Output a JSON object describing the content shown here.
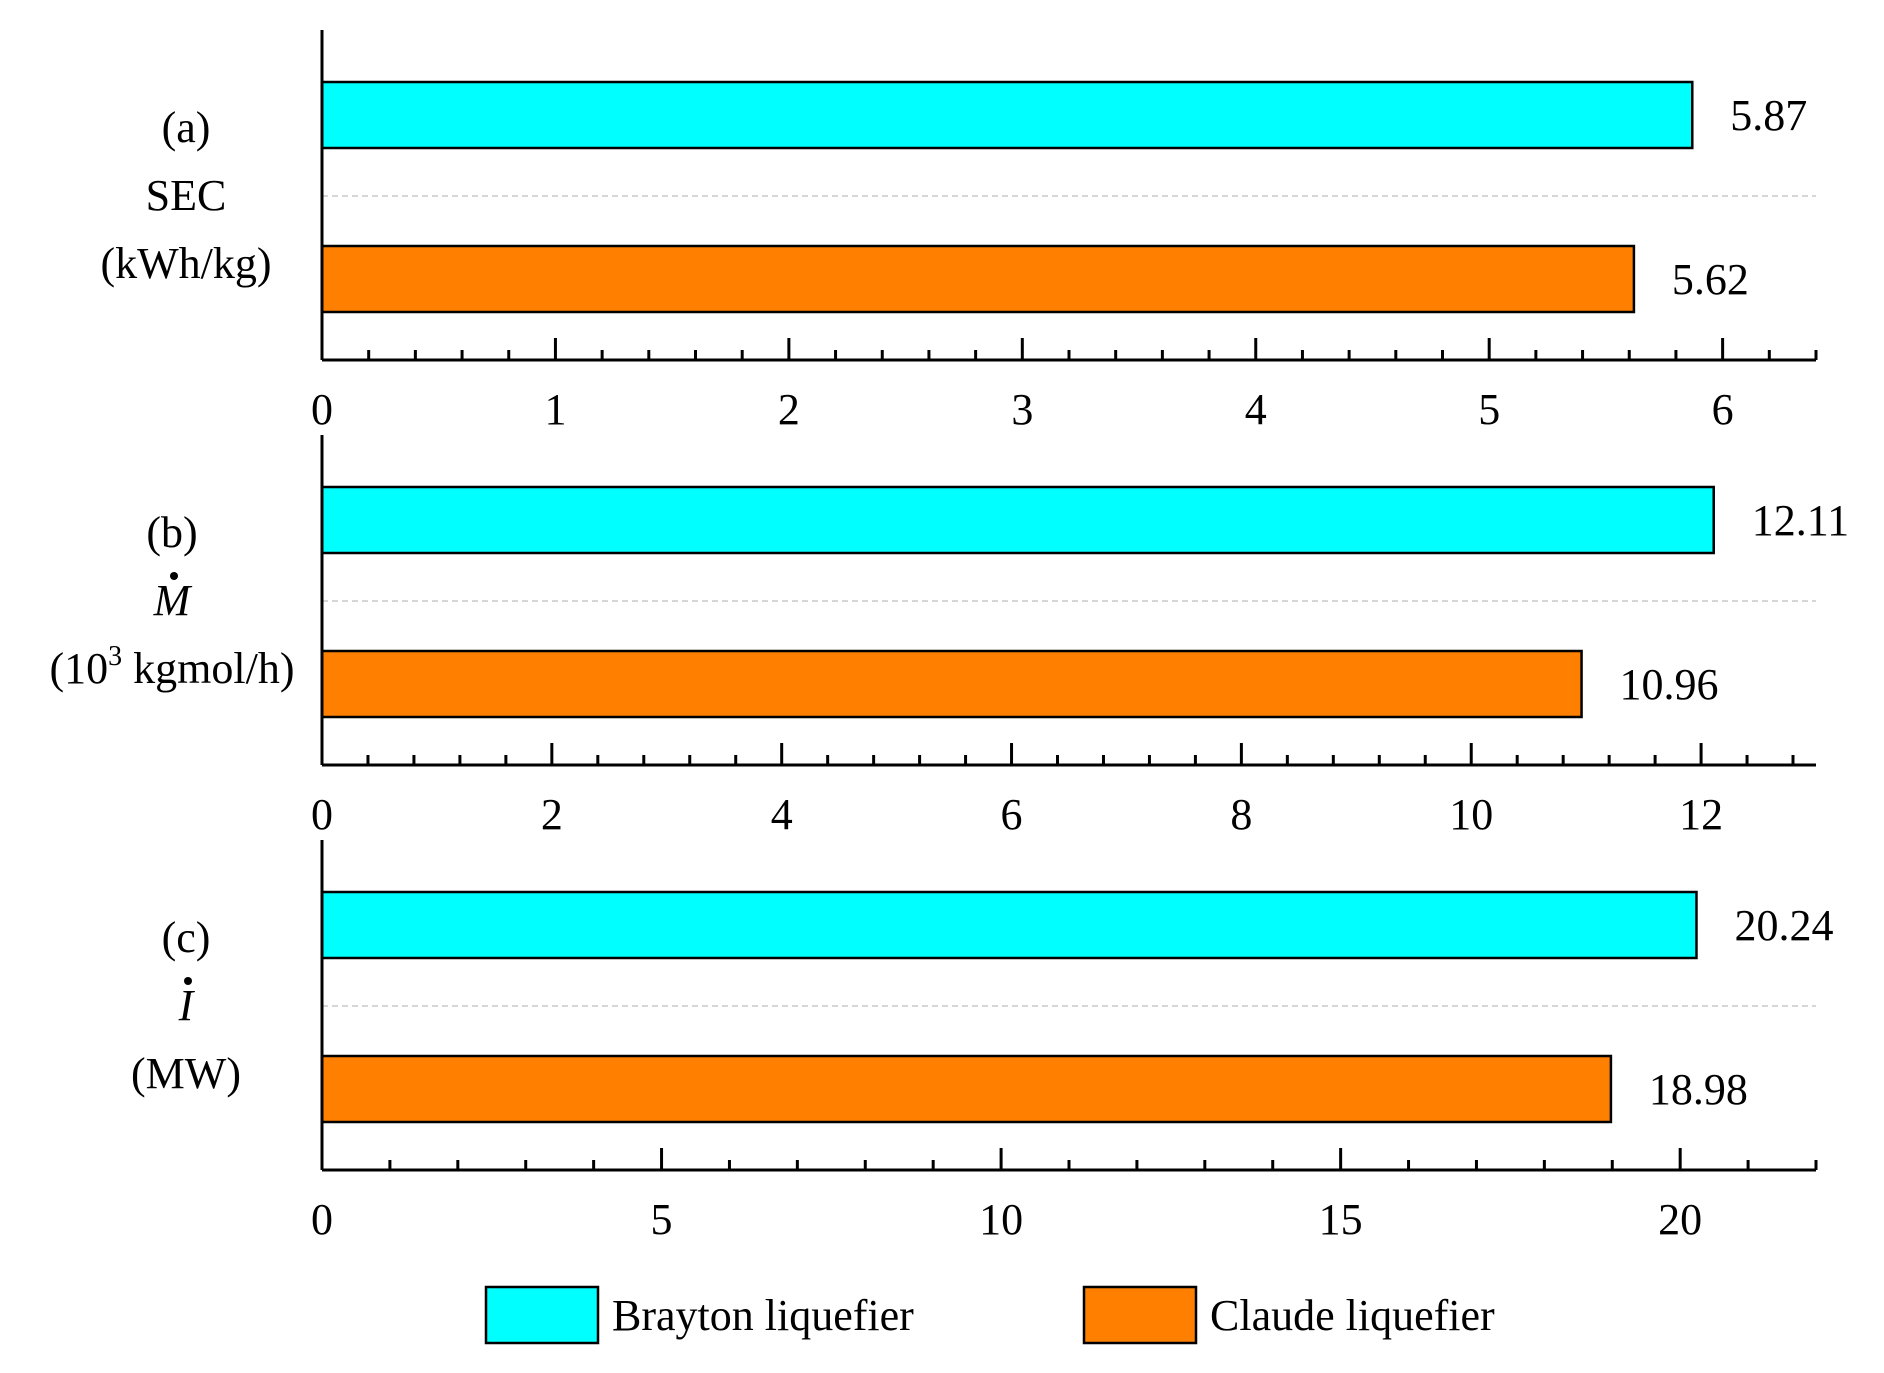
{
  "chart_data": [
    {
      "type": "bar",
      "orientation": "horizontal",
      "panel_label": "(a)",
      "ylabel": {
        "quantity": "SEC",
        "unit": "(kWh/kg)"
      },
      "categories": [
        "Brayton liquefier",
        "Claude liquefier"
      ],
      "values": [
        5.87,
        5.62
      ],
      "value_labels": [
        "5.87",
        "5.62"
      ],
      "xlim": [
        0,
        6.4
      ],
      "major_ticks": [
        0,
        1,
        2,
        3,
        4,
        5,
        6
      ],
      "tick_labels": [
        "0",
        "1",
        "2",
        "3",
        "4",
        "5",
        "6"
      ],
      "minor_step": 0.2
    },
    {
      "type": "bar",
      "orientation": "horizontal",
      "panel_label": "(b)",
      "ylabel": {
        "quantity": "M",
        "quantity_dot": true,
        "unit_prefix": "(10",
        "unit_sup": "3",
        "unit_suffix": " kgmol/h)"
      },
      "categories": [
        "Brayton liquefier",
        "Claude liquefier"
      ],
      "values": [
        12.11,
        10.96
      ],
      "value_labels": [
        "12.11",
        "10.96"
      ],
      "xlim": [
        0,
        13
      ],
      "major_ticks": [
        0,
        2,
        4,
        6,
        8,
        10,
        12
      ],
      "tick_labels": [
        "0",
        "2",
        "4",
        "6",
        "8",
        "10",
        "12"
      ],
      "minor_step": 0.4
    },
    {
      "type": "bar",
      "orientation": "horizontal",
      "panel_label": "(c)",
      "ylabel": {
        "quantity": "I",
        "quantity_dot": true,
        "unit": "(MW)"
      },
      "categories": [
        "Brayton liquefier",
        "Claude liquefier"
      ],
      "values": [
        20.24,
        18.98
      ],
      "value_labels": [
        "20.24",
        "18.98"
      ],
      "xlim": [
        0,
        22
      ],
      "major_ticks": [
        0,
        5,
        10,
        15,
        20
      ],
      "tick_labels": [
        "0",
        "5",
        "10",
        "15",
        "20"
      ],
      "minor_step": 1
    }
  ],
  "legend": {
    "placement": "bottom-center",
    "items": [
      {
        "label": "Brayton liquefier",
        "color": "#00ffff"
      },
      {
        "label": "Claude liquefier",
        "color": "#ff8000"
      }
    ]
  },
  "colors": {
    "brayton": "#00ffff",
    "claude": "#ff8000",
    "divider": "#c8c8c8"
  }
}
